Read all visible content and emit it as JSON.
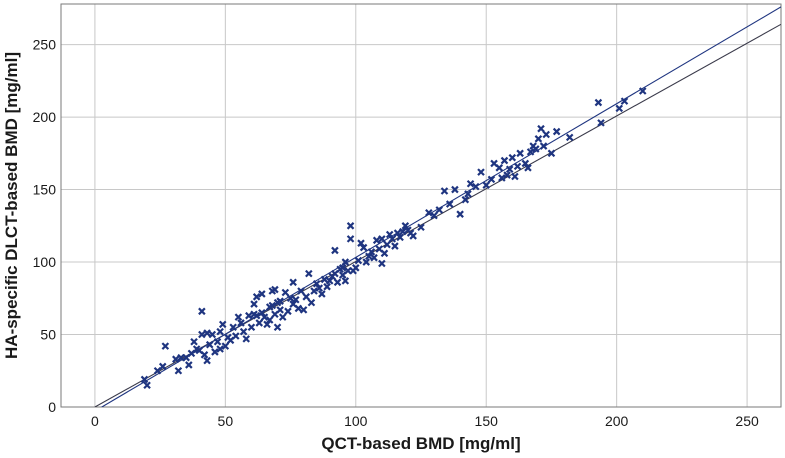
{
  "chart_data": {
    "type": "scatter",
    "xlabel": "QCT-based BMD [mg/ml]",
    "ylabel": "HA-specific DLCT-based BMD [mg/ml]",
    "xlim": [
      -13,
      263
    ],
    "ylim": [
      0,
      278
    ],
    "xticks": [
      "0",
      "50",
      "100",
      "150",
      "200",
      "250"
    ],
    "yticks": [
      "0",
      "50",
      "100",
      "150",
      "200",
      "250"
    ],
    "grid": true,
    "legend": "none",
    "marker": "x",
    "colors": {
      "marker": "#1f3580",
      "line_steep": "#1f3580",
      "line_identity": "#3a3a4a",
      "grid": "#c8c8c8"
    },
    "series": [
      {
        "points": [
          [
            19,
            19
          ],
          [
            20,
            15
          ],
          [
            24,
            25
          ],
          [
            26,
            28
          ],
          [
            27,
            42
          ],
          [
            31,
            33
          ],
          [
            32,
            25
          ],
          [
            33,
            34
          ],
          [
            35,
            34
          ],
          [
            36,
            29
          ],
          [
            37,
            37
          ],
          [
            38,
            45
          ],
          [
            39,
            40
          ],
          [
            40,
            39
          ],
          [
            41,
            50
          ],
          [
            41,
            66
          ],
          [
            42,
            36
          ],
          [
            43,
            51
          ],
          [
            43,
            32
          ],
          [
            44,
            43
          ],
          [
            45,
            50
          ],
          [
            46,
            38
          ],
          [
            47,
            45
          ],
          [
            48,
            52
          ],
          [
            48,
            40
          ],
          [
            49,
            57
          ],
          [
            50,
            42
          ],
          [
            51,
            48
          ],
          [
            52,
            46
          ],
          [
            53,
            55
          ],
          [
            54,
            49
          ],
          [
            55,
            62
          ],
          [
            56,
            58
          ],
          [
            57,
            52
          ],
          [
            58,
            47
          ],
          [
            59,
            63
          ],
          [
            60,
            55
          ],
          [
            61,
            64
          ],
          [
            61,
            71
          ],
          [
            62,
            76
          ],
          [
            62,
            63
          ],
          [
            63,
            58
          ],
          [
            64,
            65
          ],
          [
            64,
            78
          ],
          [
            65,
            62
          ],
          [
            66,
            57
          ],
          [
            67,
            60
          ],
          [
            67,
            69
          ],
          [
            68,
            70
          ],
          [
            68,
            80
          ],
          [
            69,
            64
          ],
          [
            69,
            81
          ],
          [
            70,
            55
          ],
          [
            70,
            72
          ],
          [
            71,
            73
          ],
          [
            71,
            67
          ],
          [
            72,
            62
          ],
          [
            73,
            79
          ],
          [
            74,
            66
          ],
          [
            75,
            75
          ],
          [
            76,
            71
          ],
          [
            76,
            86
          ],
          [
            77,
            74
          ],
          [
            78,
            68
          ],
          [
            79,
            80
          ],
          [
            80,
            67
          ],
          [
            81,
            76
          ],
          [
            82,
            92
          ],
          [
            83,
            72
          ],
          [
            84,
            80
          ],
          [
            85,
            85
          ],
          [
            86,
            82
          ],
          [
            87,
            78
          ],
          [
            88,
            88
          ],
          [
            89,
            83
          ],
          [
            90,
            87
          ],
          [
            91,
            90
          ],
          [
            92,
            92
          ],
          [
            92,
            108
          ],
          [
            93,
            86
          ],
          [
            94,
            95
          ],
          [
            95,
            96
          ],
          [
            95,
            91
          ],
          [
            96,
            100
          ],
          [
            96,
            87
          ],
          [
            97,
            94
          ],
          [
            98,
            116
          ],
          [
            98,
            125
          ],
          [
            99,
            94
          ],
          [
            100,
            96
          ],
          [
            101,
            101
          ],
          [
            102,
            113
          ],
          [
            103,
            110
          ],
          [
            104,
            100
          ],
          [
            105,
            104
          ],
          [
            106,
            107
          ],
          [
            107,
            103
          ],
          [
            108,
            115
          ],
          [
            109,
            109
          ],
          [
            110,
            116
          ],
          [
            110,
            99
          ],
          [
            111,
            106
          ],
          [
            112,
            112
          ],
          [
            113,
            119
          ],
          [
            114,
            116
          ],
          [
            115,
            111
          ],
          [
            116,
            120
          ],
          [
            117,
            117
          ],
          [
            118,
            121
          ],
          [
            119,
            125
          ],
          [
            120,
            122
          ],
          [
            121,
            120
          ],
          [
            122,
            118
          ],
          [
            125,
            124
          ],
          [
            128,
            134
          ],
          [
            130,
            132
          ],
          [
            132,
            136
          ],
          [
            134,
            149
          ],
          [
            136,
            140
          ],
          [
            138,
            150
          ],
          [
            140,
            133
          ],
          [
            142,
            143
          ],
          [
            143,
            147
          ],
          [
            144,
            154
          ],
          [
            146,
            152
          ],
          [
            148,
            162
          ],
          [
            150,
            153
          ],
          [
            152,
            157
          ],
          [
            153,
            168
          ],
          [
            155,
            165
          ],
          [
            156,
            158
          ],
          [
            157,
            170
          ],
          [
            158,
            160
          ],
          [
            159,
            164
          ],
          [
            160,
            172
          ],
          [
            161,
            159
          ],
          [
            162,
            166
          ],
          [
            163,
            175
          ],
          [
            165,
            168
          ],
          [
            166,
            165
          ],
          [
            167,
            176
          ],
          [
            168,
            180
          ],
          [
            169,
            178
          ],
          [
            170,
            185
          ],
          [
            171,
            192
          ],
          [
            172,
            180
          ],
          [
            173,
            188
          ],
          [
            175,
            175
          ],
          [
            177,
            190
          ],
          [
            182,
            186
          ],
          [
            193,
            210
          ],
          [
            194,
            196
          ],
          [
            201,
            206
          ],
          [
            203,
            211
          ],
          [
            210,
            218
          ]
        ]
      }
    ],
    "lines": [
      {
        "x": [
          0,
          263
        ],
        "y": [
          0,
          264
        ]
      },
      {
        "x": [
          0,
          263
        ],
        "y": [
          -2.8,
          276
        ]
      }
    ]
  }
}
